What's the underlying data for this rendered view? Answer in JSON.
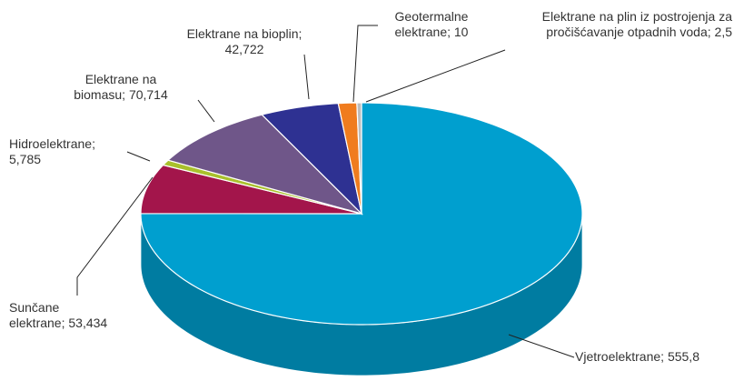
{
  "chart_data": {
    "type": "pie3d",
    "categories": [
      "Vjetroelektrane",
      "Sunčane elektrane",
      "Hidroelektrane",
      "Elektrane na biomasu",
      "Elektrane na bioplin",
      "Geotermalne elektrane",
      "Elektrane na plin iz postrojenja za pročišćavanje otpadnih voda"
    ],
    "values": [
      555.8,
      53.434,
      5.785,
      70.714,
      42.722,
      10,
      2.5
    ],
    "value_labels": [
      "555,8",
      "53,434",
      "5,785",
      "70,714",
      "42,722",
      "10",
      "2,5"
    ],
    "label_separator": "; ",
    "colors": [
      "#009fcf",
      "#a3154b",
      "#a9c02c",
      "#6f5689",
      "#2e3192",
      "#f07c1e",
      "#bdbdbd"
    ]
  }
}
